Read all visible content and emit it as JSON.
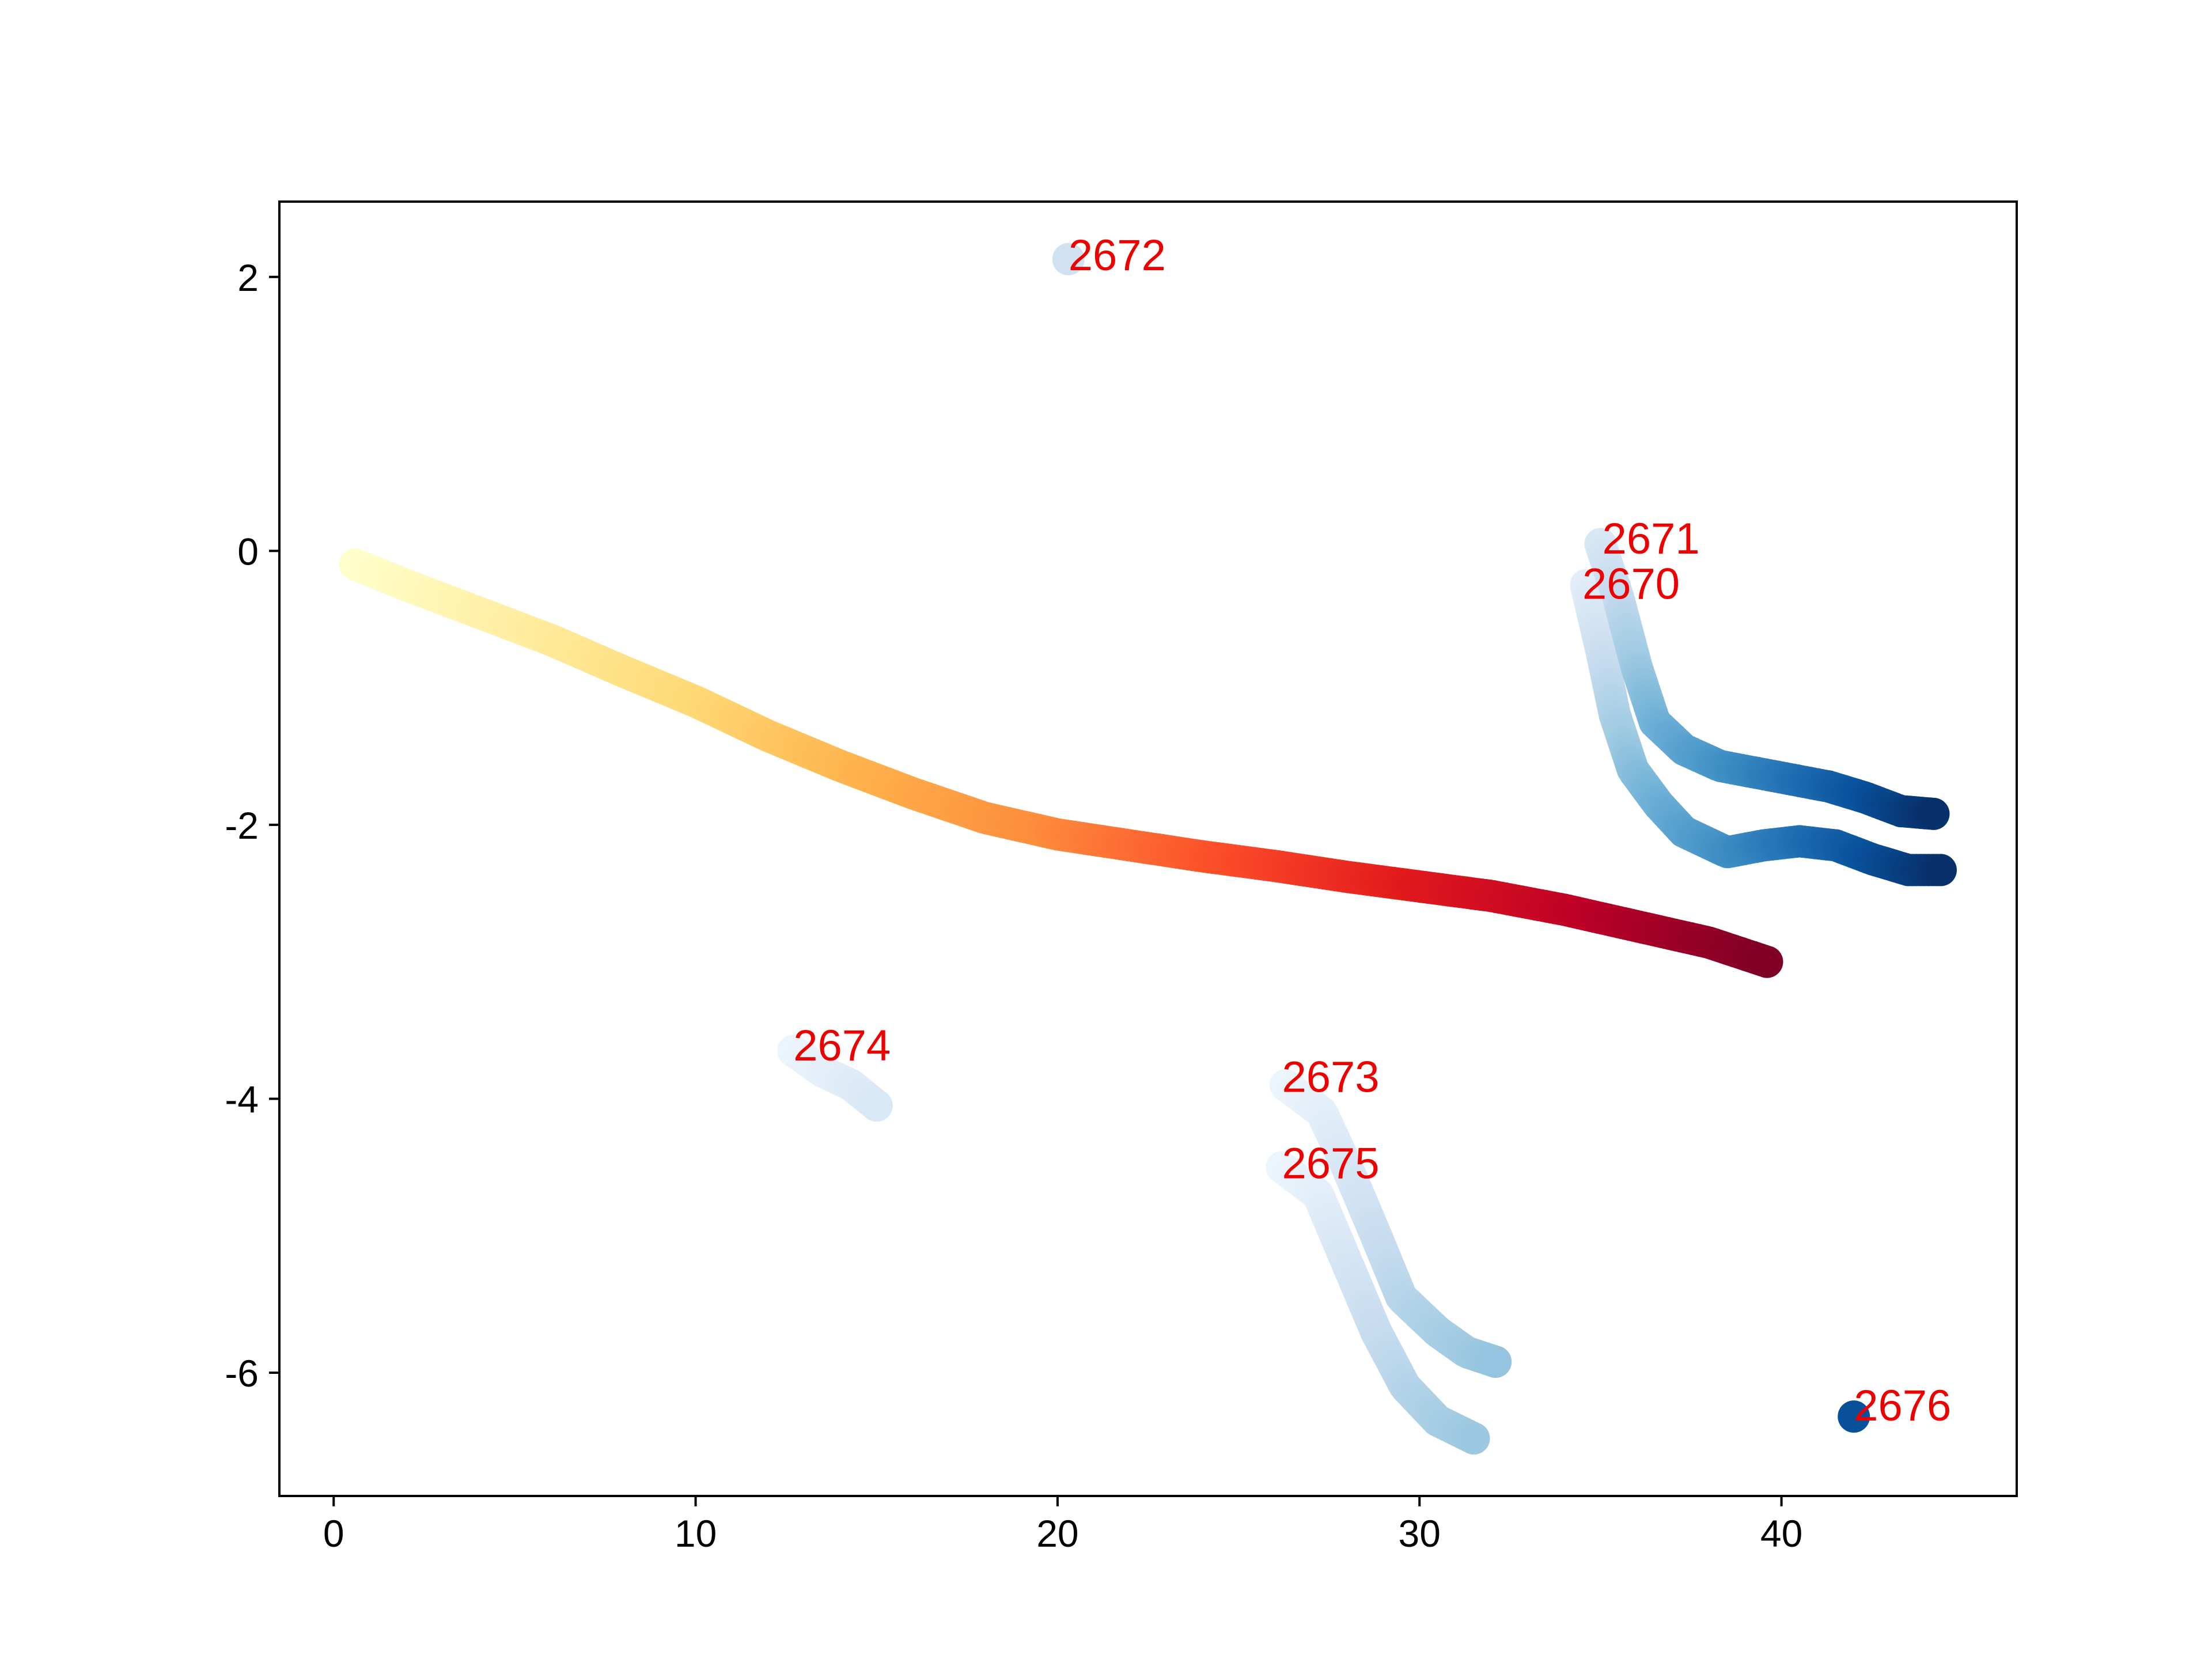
{
  "chart_data": {
    "type": "scatter",
    "title": "",
    "xlabel": "",
    "ylabel": "",
    "xlim": [
      -1.5,
      46.5
    ],
    "ylim": [
      -6.9,
      2.55
    ],
    "xticks": [
      0,
      10,
      20,
      30,
      40
    ],
    "yticks": [
      2,
      0,
      -2,
      -4,
      -6
    ],
    "grid": false,
    "legend": "none",
    "colormap_warm": [
      "#ffffcc",
      "#ffeda0",
      "#fed976",
      "#feb24c",
      "#fd8d3c",
      "#fc4e2a",
      "#e31a1c",
      "#bd0026",
      "#800026"
    ],
    "colormap_cool": [
      "#f7fbff",
      "#deebf7",
      "#c6dbef",
      "#9ecae1",
      "#6baed6",
      "#4292c6",
      "#2171b5",
      "#08519c",
      "#08306b"
    ],
    "annotation_color": "#ee0000",
    "tracks": [
      {
        "label": "",
        "palette": "warm",
        "points": [
          [
            0.6,
            -0.1
          ],
          [
            2,
            -0.25
          ],
          [
            4,
            -0.45
          ],
          [
            6,
            -0.65
          ],
          [
            8,
            -0.88
          ],
          [
            10,
            -1.1
          ],
          [
            12,
            -1.35
          ],
          [
            14,
            -1.57
          ],
          [
            16,
            -1.77
          ],
          [
            18,
            -1.95
          ],
          [
            20,
            -2.07
          ],
          [
            22,
            -2.15
          ],
          [
            24,
            -2.23
          ],
          [
            26,
            -2.3
          ],
          [
            28,
            -2.38
          ],
          [
            30,
            -2.45
          ],
          [
            32,
            -2.52
          ],
          [
            34,
            -2.62
          ],
          [
            36,
            -2.74
          ],
          [
            38,
            -2.86
          ],
          [
            39.6,
            -3.0
          ]
        ]
      },
      {
        "label": "2670",
        "palette": "cool",
        "start_shade": 0.1,
        "end_shade": 1.0,
        "points": [
          [
            34.6,
            -0.25
          ],
          [
            35.0,
            -0.7
          ],
          [
            35.4,
            -1.2
          ],
          [
            35.9,
            -1.6
          ],
          [
            36.6,
            -1.85
          ],
          [
            37.3,
            -2.05
          ],
          [
            38.5,
            -2.2
          ],
          [
            39.5,
            -2.15
          ],
          [
            40.5,
            -2.12
          ],
          [
            41.5,
            -2.15
          ],
          [
            42.5,
            -2.25
          ],
          [
            43.5,
            -2.33
          ],
          [
            44.4,
            -2.33
          ]
        ]
      },
      {
        "label": "2671",
        "palette": "cool",
        "start_shade": 0.15,
        "end_shade": 1.0,
        "points": [
          [
            35.0,
            0.05
          ],
          [
            35.5,
            -0.35
          ],
          [
            36.0,
            -0.85
          ],
          [
            36.5,
            -1.25
          ],
          [
            37.3,
            -1.45
          ],
          [
            38.3,
            -1.57
          ],
          [
            39.3,
            -1.62
          ],
          [
            40.3,
            -1.67
          ],
          [
            41.3,
            -1.72
          ],
          [
            42.3,
            -1.8
          ],
          [
            43.3,
            -1.9
          ],
          [
            44.2,
            -1.92
          ]
        ]
      },
      {
        "label": "2672",
        "palette": "cool",
        "start_shade": 0.2,
        "end_shade": 0.2,
        "points": [
          [
            20.3,
            2.13
          ]
        ]
      },
      {
        "label": "2673",
        "palette": "cool",
        "start_shade": 0.05,
        "end_shade": 0.4,
        "points": [
          [
            26.3,
            -3.9
          ],
          [
            27.3,
            -4.1
          ],
          [
            28.0,
            -4.5
          ],
          [
            28.8,
            -5.0
          ],
          [
            29.5,
            -5.45
          ],
          [
            30.5,
            -5.7
          ],
          [
            31.3,
            -5.85
          ],
          [
            32.1,
            -5.92
          ]
        ]
      },
      {
        "label": "2674",
        "palette": "cool",
        "start_shade": 0.05,
        "end_shade": 0.15,
        "points": [
          [
            12.7,
            -3.65
          ],
          [
            13.5,
            -3.8
          ],
          [
            14.3,
            -3.9
          ],
          [
            15.0,
            -4.05
          ]
        ]
      },
      {
        "label": "2675",
        "palette": "cool",
        "start_shade": 0.05,
        "end_shade": 0.38,
        "points": [
          [
            26.2,
            -4.5
          ],
          [
            27.2,
            -4.7
          ],
          [
            28.0,
            -5.2
          ],
          [
            28.8,
            -5.7
          ],
          [
            29.6,
            -6.1
          ],
          [
            30.5,
            -6.35
          ],
          [
            31.5,
            -6.48
          ]
        ]
      },
      {
        "label": "2676",
        "palette": "cool",
        "start_shade": 0.88,
        "end_shade": 0.88,
        "points": [
          [
            42.0,
            -6.32
          ]
        ]
      }
    ],
    "annotations": [
      {
        "text": "2670",
        "x": 34.5,
        "y": -0.35
      },
      {
        "text": "2671",
        "x": 35.05,
        "y": -0.02
      },
      {
        "text": "2672",
        "x": 20.3,
        "y": 2.05
      },
      {
        "text": "2673",
        "x": 26.2,
        "y": -3.95
      },
      {
        "text": "2674",
        "x": 12.7,
        "y": -3.72
      },
      {
        "text": "2675",
        "x": 26.2,
        "y": -4.58
      },
      {
        "text": "2676",
        "x": 42.0,
        "y": -6.35
      }
    ]
  }
}
